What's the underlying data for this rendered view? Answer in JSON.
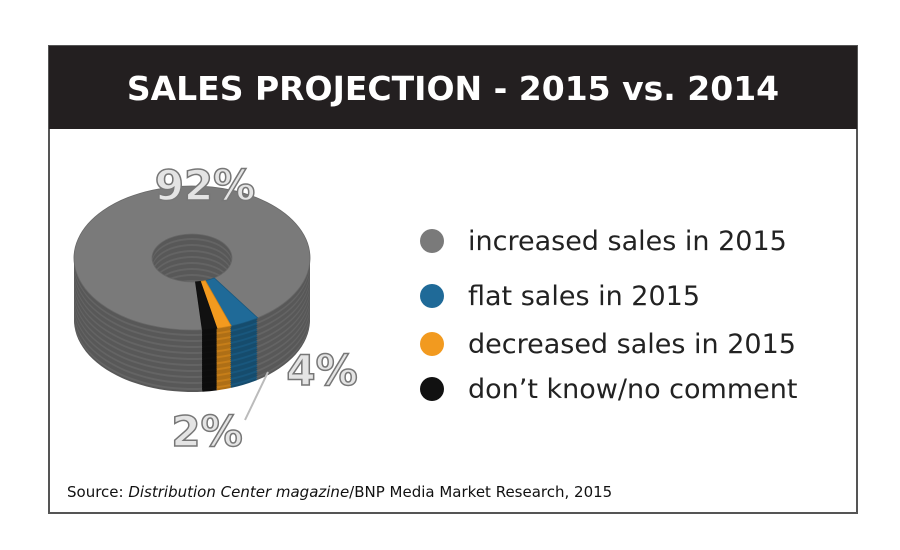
{
  "chart_data": {
    "type": "pie",
    "title": "SALES PROJECTION - 2015 vs. 2014",
    "categories": [
      "increased sales in 2015",
      "flat sales in 2015",
      "decreased sales in 2015",
      "don’t know/no comment"
    ],
    "values": [
      92,
      4,
      2,
      2
    ],
    "value_labels": [
      "92%",
      "4%",
      "2%",
      null
    ],
    "colors": [
      "#7a7a7a",
      "#1f6a98",
      "#f29a1f",
      "#111111"
    ],
    "source": [
      "Source: ",
      "Distribution Center magazine",
      "/BNP Media Market Research, 2015"
    ]
  }
}
